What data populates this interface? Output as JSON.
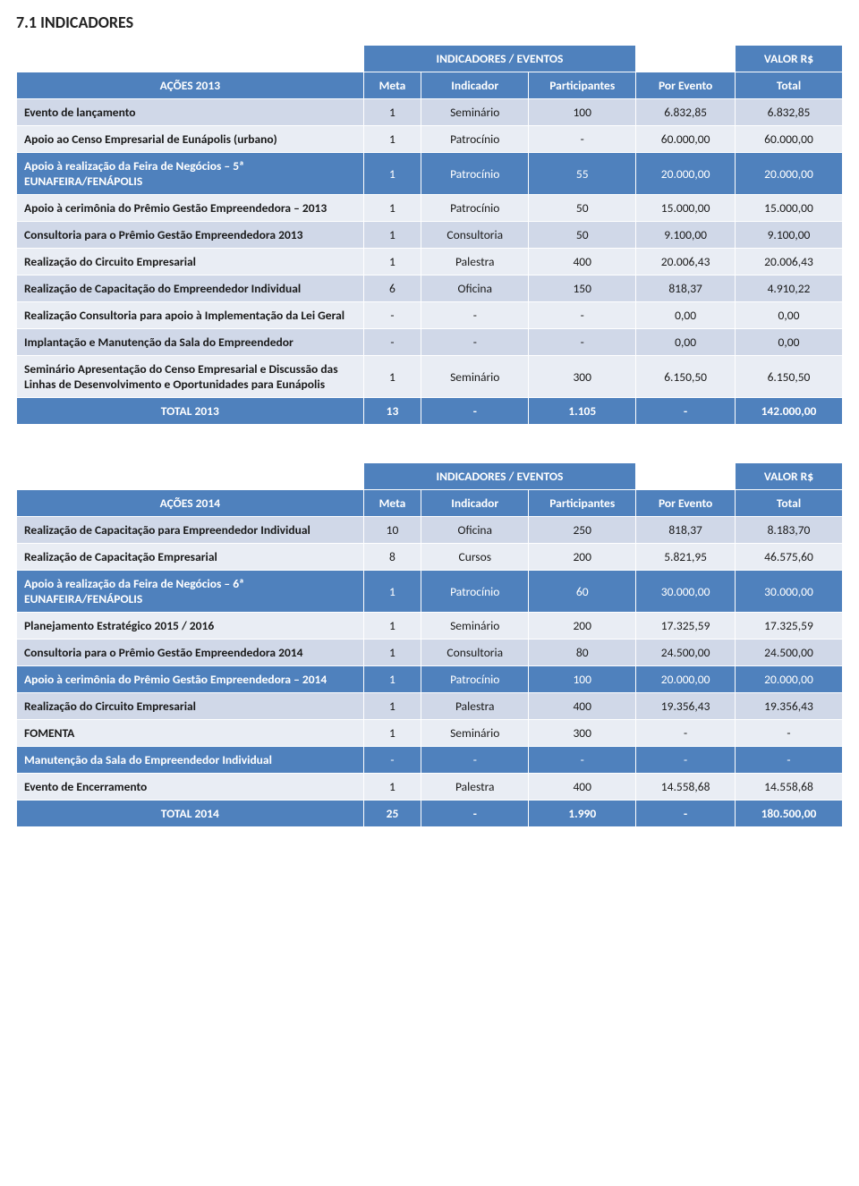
{
  "page": {
    "title": "7.1 INDICADORES"
  },
  "colors": {
    "header_bg": "#4f81bd",
    "header_text": "#ffffff",
    "row_odd": "#d0d8e8",
    "row_even": "#e9edf4",
    "page_bg": "#ffffff",
    "text": "#1a1a1a"
  },
  "typography": {
    "body_fontsize_pt": 10,
    "title_fontsize_pt": 14,
    "font_family": "Calibri",
    "header_weight": "bold",
    "label_weight": "bold"
  },
  "table2013": {
    "type": "table",
    "group_header": {
      "indicadores": "INDICADORES / EVENTOS",
      "valor": "VALOR R$"
    },
    "columns": {
      "acoes": "AÇÕES 2013",
      "meta": "Meta",
      "indicador": "Indicador",
      "participantes": "Participantes",
      "por_evento": "Por Evento",
      "total": "Total"
    },
    "rows": [
      {
        "label": "Evento de lançamento",
        "meta": "1",
        "indicador": "Seminário",
        "participantes": "100",
        "por_evento": "6.832,85",
        "total": "6.832,85",
        "hi": false
      },
      {
        "label": "Apoio ao Censo Empresarial de Eunápolis (urbano)",
        "meta": "1",
        "indicador": "Patrocínio",
        "participantes": "-",
        "por_evento": "60.000,00",
        "total": "60.000,00",
        "hi": false
      },
      {
        "label": "Apoio à realização da Feira de Negócios – 5ª EUNAFEIRA/FENÁPOLIS",
        "meta": "1",
        "indicador": "Patrocínio",
        "participantes": "55",
        "por_evento": "20.000,00",
        "total": "20.000,00",
        "hi": true
      },
      {
        "label": "Apoio à cerimônia do Prêmio Gestão Empreendedora – 2013",
        "meta": "1",
        "indicador": "Patrocínio",
        "participantes": "50",
        "por_evento": "15.000,00",
        "total": "15.000,00",
        "hi": false
      },
      {
        "label": "Consultoria para o Prêmio Gestão Empreendedora 2013",
        "meta": "1",
        "indicador": "Consultoria",
        "participantes": "50",
        "por_evento": "9.100,00",
        "total": "9.100,00",
        "hi": false
      },
      {
        "label": "Realização do Circuito Empresarial",
        "meta": "1",
        "indicador": "Palestra",
        "participantes": "400",
        "por_evento": "20.006,43",
        "total": "20.006,43",
        "hi": false
      },
      {
        "label": "Realização de Capacitação do Empreendedor Individual",
        "meta": "6",
        "indicador": "Oficina",
        "participantes": "150",
        "por_evento": "818,37",
        "total": "4.910,22",
        "hi": false
      },
      {
        "label": "Realização Consultoria para apoio à Implementação da Lei Geral",
        "meta": "-",
        "indicador": "-",
        "participantes": "-",
        "por_evento": "0,00",
        "total": "0,00",
        "hi": false
      },
      {
        "label": "Implantação e Manutenção da Sala do Empreendedor",
        "meta": "-",
        "indicador": "-",
        "participantes": "-",
        "por_evento": "0,00",
        "total": "0,00",
        "hi": false
      },
      {
        "label": "Seminário Apresentação do Censo Empresarial e Discussão das Linhas de Desenvolvimento e Oportunidades para Eunápolis",
        "meta": "1",
        "indicador": "Seminário",
        "participantes": "300",
        "por_evento": "6.150,50",
        "total": "6.150,50",
        "hi": false
      }
    ],
    "totals": {
      "label": "TOTAL 2013",
      "meta": "13",
      "indicador": "-",
      "participantes": "1.105",
      "por_evento": "-",
      "total": "142.000,00"
    }
  },
  "table2014": {
    "type": "table",
    "group_header": {
      "indicadores": "INDICADORES / EVENTOS",
      "valor": "VALOR R$"
    },
    "columns": {
      "acoes": "AÇÕES 2014",
      "meta": "Meta",
      "indicador": "Indicador",
      "participantes": "Participantes",
      "por_evento": "Por Evento",
      "total": "Total"
    },
    "rows": [
      {
        "label": "Realização de Capacitação para Empreendedor Individual",
        "meta": "10",
        "indicador": "Oficina",
        "participantes": "250",
        "por_evento": "818,37",
        "total": "8.183,70",
        "hi": false
      },
      {
        "label": "Realização de Capacitação Empresarial",
        "meta": "8",
        "indicador": "Cursos",
        "participantes": "200",
        "por_evento": "5.821,95",
        "total": "46.575,60",
        "hi": false
      },
      {
        "label": "Apoio à realização da Feira de Negócios – 6ª EUNAFEIRA/FENÁPOLIS",
        "meta": "1",
        "indicador": "Patrocínio",
        "participantes": "60",
        "por_evento": "30.000,00",
        "total": "30.000,00",
        "hi": true
      },
      {
        "label": "Planejamento Estratégico 2015 / 2016",
        "meta": "1",
        "indicador": "Seminário",
        "participantes": "200",
        "por_evento": "17.325,59",
        "total": "17.325,59",
        "hi": false
      },
      {
        "label": "Consultoria para o Prêmio Gestão Empreendedora 2014",
        "meta": "1",
        "indicador": "Consultoria",
        "participantes": "80",
        "por_evento": "24.500,00",
        "total": "24.500,00",
        "hi": false
      },
      {
        "label": "Apoio à cerimônia do Prêmio Gestão Empreendedora – 2014",
        "meta": "1",
        "indicador": "Patrocínio",
        "participantes": "100",
        "por_evento": "20.000,00",
        "total": "20.000,00",
        "hi": true
      },
      {
        "label": "Realização do Circuito Empresarial",
        "meta": "1",
        "indicador": "Palestra",
        "participantes": "400",
        "por_evento": "19.356,43",
        "total": "19.356,43",
        "hi": false
      },
      {
        "label": "FOMENTA",
        "meta": "1",
        "indicador": "Seminário",
        "participantes": "300",
        "por_evento": "-",
        "total": "-",
        "hi": false
      },
      {
        "label": "Manutenção da Sala do Empreendedor Individual",
        "meta": "-",
        "indicador": "-",
        "participantes": "-",
        "por_evento": "-",
        "total": "-",
        "hi": true
      },
      {
        "label": "Evento de Encerramento",
        "meta": "1",
        "indicador": "Palestra",
        "participantes": "400",
        "por_evento": "14.558,68",
        "total": "14.558,68",
        "hi": false
      }
    ],
    "totals": {
      "label": "TOTAL 2014",
      "meta": "25",
      "indicador": "-",
      "participantes": "1.990",
      "por_evento": "-",
      "total": "180.500,00"
    }
  }
}
